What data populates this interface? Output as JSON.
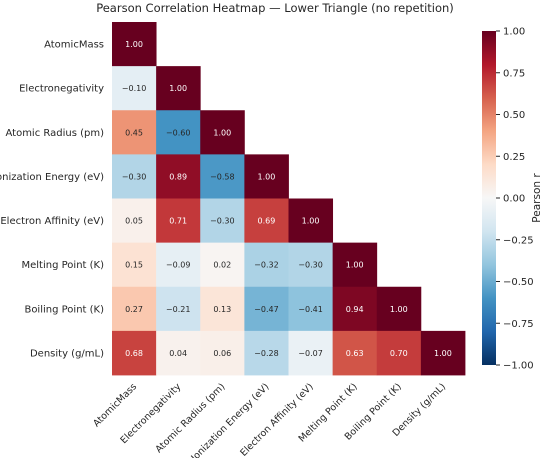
{
  "chart_data": {
    "type": "heatmap",
    "title": "Pearson Correlation Heatmap — Lower Triangle (no repetition)",
    "labels": [
      "AtomicMass",
      "Electronegativity",
      "Atomic Radius (pm)",
      "Ionization Energy (eV)",
      "Electron Affinity (eV)",
      "Melting Point (K)",
      "Boiling Point (K)",
      "Density (g/mL)"
    ],
    "matrix": [
      [
        1.0
      ],
      [
        -0.1,
        1.0
      ],
      [
        0.45,
        -0.6,
        1.0
      ],
      [
        -0.3,
        0.89,
        -0.58,
        1.0
      ],
      [
        0.05,
        0.71,
        -0.3,
        0.69,
        1.0
      ],
      [
        0.15,
        -0.09,
        0.02,
        -0.32,
        -0.3,
        1.0
      ],
      [
        0.27,
        -0.21,
        0.13,
        -0.47,
        -0.41,
        0.94,
        1.0
      ],
      [
        0.68,
        0.04,
        0.06,
        -0.28,
        -0.07,
        0.63,
        0.7,
        1.0
      ]
    ],
    "cell_labels": [
      [
        "1.00"
      ],
      [
        "−0.10",
        "1.00"
      ],
      [
        "0.45",
        "−0.60",
        "1.00"
      ],
      [
        "−0.30",
        "0.89",
        "−0.58",
        "1.00"
      ],
      [
        "0.05",
        "0.71",
        "−0.30",
        "0.69",
        "1.00"
      ],
      [
        "0.15",
        "−0.09",
        "0.02",
        "−0.32",
        "−0.30",
        "1.00"
      ],
      [
        "0.27",
        "−0.21",
        "0.13",
        "−0.47",
        "−0.41",
        "0.94",
        "1.00"
      ],
      [
        "0.68",
        "0.04",
        "0.06",
        "−0.28",
        "−0.07",
        "0.63",
        "0.70",
        "1.00"
      ]
    ],
    "colorbar": {
      "label": "Pearson r",
      "range": [
        -1,
        1
      ],
      "ticks": [
        1.0,
        0.75,
        0.5,
        0.25,
        0.0,
        -0.25,
        -0.5,
        -0.75,
        -1.0
      ],
      "tick_labels": [
        "1.00",
        "0.75",
        "0.50",
        "0.25",
        "0.00",
        "−0.25",
        "−0.50",
        "−0.75",
        "−1.00"
      ],
      "colormap": "RdBu_r",
      "colors": [
        "#053061",
        "#2166ac",
        "#4393c3",
        "#92c5de",
        "#d1e5f0",
        "#f7f7f7",
        "#fddbc7",
        "#f4a582",
        "#d6604d",
        "#b2182b",
        "#67001f"
      ]
    },
    "grid": false
  }
}
